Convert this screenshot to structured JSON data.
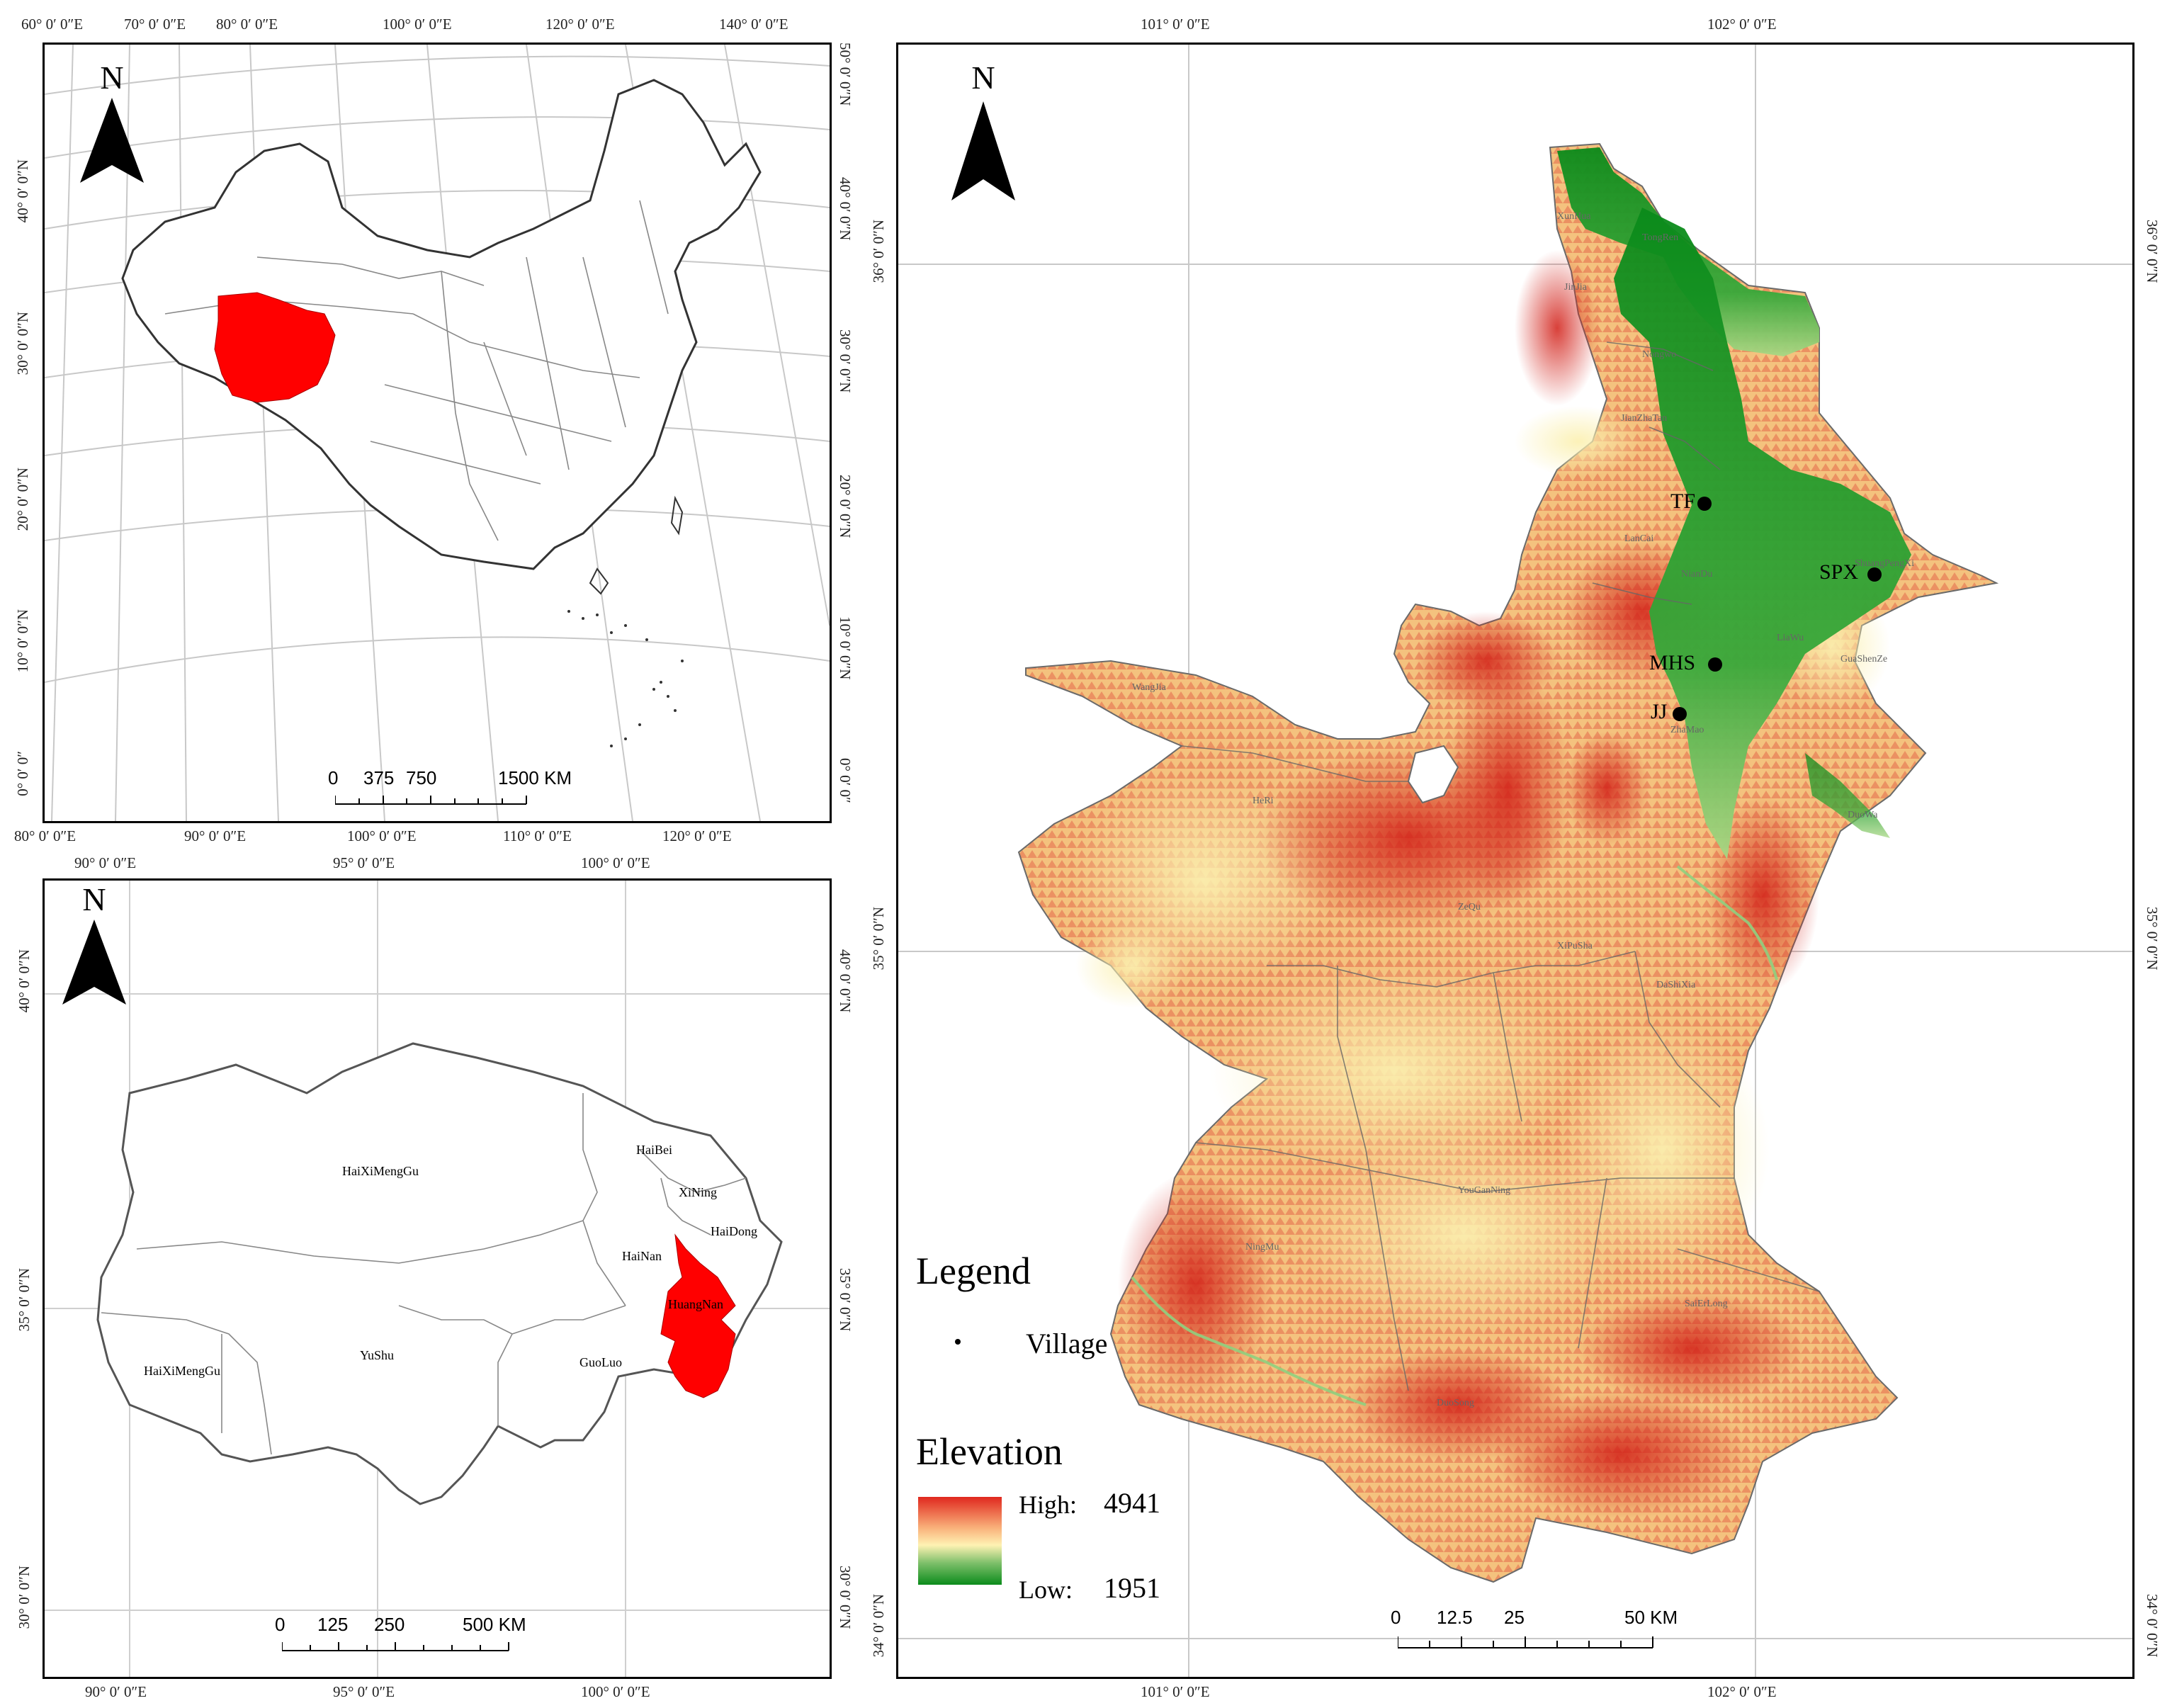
{
  "panel_china": {
    "north": "N",
    "top_lon": [
      "60° 0′ 0″E",
      "70° 0′ 0″E",
      "80° 0′ 0″E",
      "100° 0′ 0″E",
      "120° 0′ 0″E",
      "140° 0′ 0″E"
    ],
    "bottom_lon": [
      "80° 0′ 0″E",
      "90° 0′ 0″E",
      "100° 0′ 0″E",
      "110° 0′ 0″E",
      "120° 0′ 0″E"
    ],
    "left_lat": [
      "40° 0′ 0″N",
      "30° 0′ 0″N",
      "20° 0′ 0″N",
      "10° 0′ 0″N",
      "0° 0′ 0″"
    ],
    "right_lat": [
      "50° 0′ 0″N",
      "40° 0′ 0″N",
      "30° 0′ 0″N",
      "20° 0′ 0″N",
      "10° 0′ 0″N",
      "0° 0′ 0″"
    ],
    "scale": {
      "ticks": [
        "0",
        "375",
        "750",
        "1500 KM"
      ]
    }
  },
  "panel_qinghai": {
    "north": "N",
    "top_lon": [
      "90° 0′ 0″E",
      "95° 0′ 0″E",
      "100° 0′ 0″E"
    ],
    "bottom_lon": [
      "90° 0′ 0″E",
      "95° 0′ 0″E",
      "100° 0′ 0″E"
    ],
    "left_lat": [
      "40° 0′ 0″N",
      "35° 0′ 0″N",
      "30° 0′ 0″N"
    ],
    "right_lat": [
      "40° 0′ 0″N",
      "35° 0′ 0″N",
      "30° 0′ 0″N"
    ],
    "regions": [
      "HaiXiMengGu",
      "HaiBei",
      "XiNing",
      "HaiDong",
      "HaiNan",
      "HuangNan",
      "YuShu",
      "GuoLuo",
      "HaiXiMengGu"
    ],
    "scale": {
      "ticks": [
        "0",
        "125",
        "250",
        "500 KM"
      ]
    }
  },
  "panel_main": {
    "north": "N",
    "top_lon": [
      "101° 0′ 0″E",
      "102° 0′ 0″E"
    ],
    "bottom_lon": [
      "101° 0′ 0″E",
      "102° 0′ 0″E"
    ],
    "left_lat": [
      "36° 0′ 0″N",
      "35° 0′ 0″N",
      "34° 0′ 0″N"
    ],
    "right_lat": [
      "36° 0′ 0″N",
      "35° 0′ 0″N",
      "34° 0′ 0″N"
    ],
    "villages": [
      {
        "code": "TF"
      },
      {
        "code": "SPX"
      },
      {
        "code": "MHS"
      },
      {
        "code": "JJ"
      }
    ],
    "place_names": [
      "XunHua",
      "TongRen",
      "JianZhaTan",
      "LanCai",
      "NianDu",
      "ZhaMao",
      "GuaShenZe",
      "WangJia",
      "HeRi",
      "ZeQu",
      "XiPuSha",
      "DuoWa",
      "DaShiXia",
      "YouGanNing",
      "NingMu",
      "SaiErLong",
      "DuoSong",
      "ShuangPengXi",
      "JinJia",
      "Nongwo",
      "LiaWu",
      "ZhaMao"
    ],
    "scale": {
      "ticks": [
        "0",
        "12.5",
        "25",
        "50 KM"
      ]
    },
    "legend": {
      "title": "Legend",
      "village_label": "Village",
      "elevation_title": "Elevation",
      "high_label": "High:",
      "high_value": "4941",
      "low_label": "Low:",
      "low_value": "1951"
    }
  },
  "colors": {
    "highlight": "#ff0000",
    "elev_high": "#e0281e",
    "elev_mid": "#fff2b3",
    "elev_low": "#0c8c1c"
  }
}
